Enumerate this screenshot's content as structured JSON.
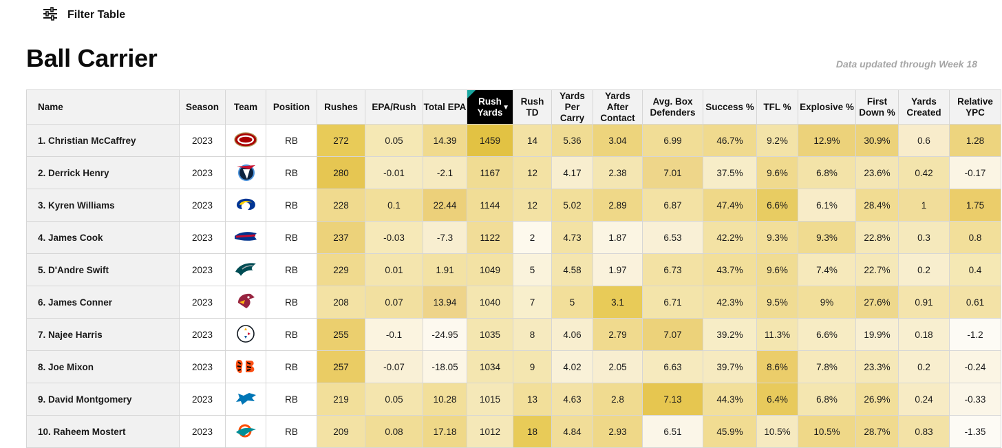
{
  "filter": {
    "label": "Filter Table",
    "icon": "sliders-icon"
  },
  "title": "Ball Carrier",
  "updated": "Data updated through Week 18",
  "columns": [
    {
      "key": "name",
      "label": "Name",
      "shade": false
    },
    {
      "key": "season",
      "label": "Season",
      "shade": false
    },
    {
      "key": "team",
      "label": "Team",
      "shade": false
    },
    {
      "key": "position",
      "label": "Position",
      "shade": false
    },
    {
      "key": "rushes",
      "label": "Rushes",
      "shade": true
    },
    {
      "key": "epa_rush",
      "label": "EPA/Rush",
      "shade": true
    },
    {
      "key": "total_epa",
      "label": "Total EPA",
      "shade": true
    },
    {
      "key": "rush_yards",
      "label": "Rush Yards",
      "shade": true,
      "sorted": true
    },
    {
      "key": "rush_td",
      "label": "Rush TD",
      "shade": true
    },
    {
      "key": "ypc",
      "label": "Yards Per Carry",
      "shade": true
    },
    {
      "key": "yac",
      "label": "Yards After Contact",
      "shade": true
    },
    {
      "key": "box",
      "label": "Avg. Box Defenders",
      "shade": true
    },
    {
      "key": "success",
      "label": "Success %",
      "shade": true
    },
    {
      "key": "tfl",
      "label": "TFL %",
      "shade": true
    },
    {
      "key": "explosive",
      "label": "Explosive %",
      "shade": true
    },
    {
      "key": "first_down",
      "label": "First Down %",
      "shade": true
    },
    {
      "key": "yards_created",
      "label": "Yards Created",
      "shade": true
    },
    {
      "key": "rel_ypc",
      "label": "Relative YPC",
      "shade": true
    }
  ],
  "rows": [
    {
      "name": "1. Christian McCaffrey",
      "season": "2023",
      "team": "SF",
      "position": "RB",
      "rushes": "272",
      "epa_rush": "0.05",
      "total_epa": "14.39",
      "rush_yards": "1459",
      "rush_td": "14",
      "ypc": "5.36",
      "yac": "3.04",
      "box": "6.99",
      "success": "46.7%",
      "tfl": "9.2%",
      "explosive": "12.9%",
      "first_down": "30.9%",
      "yards_created": "0.6",
      "rel_ypc": "1.28"
    },
    {
      "name": "2. Derrick Henry",
      "season": "2023",
      "team": "TEN",
      "position": "RB",
      "rushes": "280",
      "epa_rush": "-0.01",
      "total_epa": "-2.1",
      "rush_yards": "1167",
      "rush_td": "12",
      "ypc": "4.17",
      "yac": "2.38",
      "box": "7.01",
      "success": "37.5%",
      "tfl": "9.6%",
      "explosive": "6.8%",
      "first_down": "23.6%",
      "yards_created": "0.42",
      "rel_ypc": "-0.17"
    },
    {
      "name": "3. Kyren Williams",
      "season": "2023",
      "team": "LAR",
      "position": "RB",
      "rushes": "228",
      "epa_rush": "0.1",
      "total_epa": "22.44",
      "rush_yards": "1144",
      "rush_td": "12",
      "ypc": "5.02",
      "yac": "2.89",
      "box": "6.87",
      "success": "47.4%",
      "tfl": "6.6%",
      "explosive": "6.1%",
      "first_down": "28.4%",
      "yards_created": "1",
      "rel_ypc": "1.75"
    },
    {
      "name": "4. James Cook",
      "season": "2023",
      "team": "BUF",
      "position": "RB",
      "rushes": "237",
      "epa_rush": "-0.03",
      "total_epa": "-7.3",
      "rush_yards": "1122",
      "rush_td": "2",
      "ypc": "4.73",
      "yac": "1.87",
      "box": "6.53",
      "success": "42.2%",
      "tfl": "9.3%",
      "explosive": "9.3%",
      "first_down": "22.8%",
      "yards_created": "0.3",
      "rel_ypc": "0.8"
    },
    {
      "name": "5. D'Andre Swift",
      "season": "2023",
      "team": "PHI",
      "position": "RB",
      "rushes": "229",
      "epa_rush": "0.01",
      "total_epa": "1.91",
      "rush_yards": "1049",
      "rush_td": "5",
      "ypc": "4.58",
      "yac": "1.97",
      "box": "6.73",
      "success": "43.7%",
      "tfl": "9.6%",
      "explosive": "7.4%",
      "first_down": "22.7%",
      "yards_created": "0.2",
      "rel_ypc": "0.4"
    },
    {
      "name": "6. James Conner",
      "season": "2023",
      "team": "ARI",
      "position": "RB",
      "rushes": "208",
      "epa_rush": "0.07",
      "total_epa": "13.94",
      "rush_yards": "1040",
      "rush_td": "7",
      "ypc": "5",
      "yac": "3.1",
      "box": "6.71",
      "success": "42.3%",
      "tfl": "9.5%",
      "explosive": "9%",
      "first_down": "27.6%",
      "yards_created": "0.91",
      "rel_ypc": "0.61"
    },
    {
      "name": "7. Najee Harris",
      "season": "2023",
      "team": "PIT",
      "position": "RB",
      "rushes": "255",
      "epa_rush": "-0.1",
      "total_epa": "-24.95",
      "rush_yards": "1035",
      "rush_td": "8",
      "ypc": "4.06",
      "yac": "2.79",
      "box": "7.07",
      "success": "39.2%",
      "tfl": "11.3%",
      "explosive": "6.6%",
      "first_down": "19.9%",
      "yards_created": "0.18",
      "rel_ypc": "-1.2"
    },
    {
      "name": "8. Joe Mixon",
      "season": "2023",
      "team": "CIN",
      "position": "RB",
      "rushes": "257",
      "epa_rush": "-0.07",
      "total_epa": "-18.05",
      "rush_yards": "1034",
      "rush_td": "9",
      "ypc": "4.02",
      "yac": "2.05",
      "box": "6.63",
      "success": "39.7%",
      "tfl": "8.6%",
      "explosive": "7.8%",
      "first_down": "23.3%",
      "yards_created": "0.2",
      "rel_ypc": "-0.24"
    },
    {
      "name": "9. David Montgomery",
      "season": "2023",
      "team": "DET",
      "position": "RB",
      "rushes": "219",
      "epa_rush": "0.05",
      "total_epa": "10.28",
      "rush_yards": "1015",
      "rush_td": "13",
      "ypc": "4.63",
      "yac": "2.8",
      "box": "7.13",
      "success": "44.3%",
      "tfl": "6.4%",
      "explosive": "6.8%",
      "first_down": "26.9%",
      "yards_created": "0.24",
      "rel_ypc": "-0.33"
    },
    {
      "name": "10. Raheem Mostert",
      "season": "2023",
      "team": "MIA",
      "position": "RB",
      "rushes": "209",
      "epa_rush": "0.08",
      "total_epa": "17.18",
      "rush_yards": "1012",
      "rush_td": "18",
      "ypc": "4.84",
      "yac": "2.93",
      "box": "6.51",
      "success": "45.9%",
      "tfl": "10.5%",
      "explosive": "10.5%",
      "first_down": "28.7%",
      "yards_created": "0.83",
      "rel_ypc": "-1.35"
    }
  ],
  "heat": [
    [
      "",
      "",
      "",
      "",
      "#e8cb58",
      "#f5e8b4",
      "#f0da8e",
      "#e2c243",
      "#f3e2a4",
      "#f0dc93",
      "#edd47c",
      "#f1dd96",
      "#f0da8e",
      "#f3e3a8",
      "#ecd27a",
      "#ecd27a",
      "#f8eccb",
      "#edd47e"
    ],
    [
      "",
      "",
      "",
      "",
      "#e6c652",
      "#f6ebc2",
      "#f6eac0",
      "#f0dc93",
      "#f3e2a4",
      "#f8eecf",
      "#f4e6b2",
      "#eed68a",
      "#f7edc8",
      "#f0da8e",
      "#f3e3a8",
      "#f4e6b4",
      "#f3e4ac",
      "#fbf5e4"
    ],
    [
      "",
      "",
      "",
      "",
      "#f0da8e",
      "#f2df9a",
      "#ecd07a",
      "#f1dd96",
      "#f3e2a4",
      "#f2df9a",
      "#efd888",
      "#f3e2a4",
      "#efd888",
      "#e8cc62",
      "#f8ecc8",
      "#f1dc92",
      "#f1dd9a",
      "#ebcd6a"
    ],
    [
      "",
      "",
      "",
      "",
      "#ecd27a",
      "#f6e9b8",
      "#f8eed0",
      "#f1dd98",
      "#fdf9ed",
      "#f3e2a4",
      "#fbf5e3",
      "#f9f0d6",
      "#f3e2a4",
      "#f2df9a",
      "#f0db90",
      "#f5e8b8",
      "#f5e9bc",
      "#f2df9a"
    ],
    [
      "",
      "",
      "",
      "",
      "#f0da8e",
      "#f4e5ae",
      "#f3e2a4",
      "#f3e2a4",
      "#faf3dc",
      "#f4e5ae",
      "#faf2dc",
      "#f3e2a4",
      "#f2df9a",
      "#f0dc93",
      "#f6e9bb",
      "#f5e8b8",
      "#f8eece",
      "#f5e8b4"
    ],
    [
      "",
      "",
      "",
      "",
      "#f3e2a4",
      "#f2e0a0",
      "#eed48a",
      "#f4e6b0",
      "#f8efcc",
      "#f2df9a",
      "#e8cb58",
      "#f3e4aa",
      "#f3e2a4",
      "#f0dc93",
      "#f2df9a",
      "#eed88c",
      "#f4e4ac",
      "#f3e2a6"
    ],
    [
      "",
      "",
      "",
      "",
      "#ebcf6e",
      "#fbf4e0",
      "#fdf9ef",
      "#f4e6b0",
      "#f6eabf",
      "#f8eecf",
      "#f0da8e",
      "#ecd27a",
      "#f7edc6",
      "#f4e6b0",
      "#f7ecc4",
      "#f8efd2",
      "#f8efd0",
      "#fdfbf5"
    ],
    [
      "",
      "",
      "",
      "",
      "#eacc64",
      "#f9f0d6",
      "#fcf6e6",
      "#f4e6b0",
      "#f4e6b0",
      "#f9f1d8",
      "#f8eed0",
      "#f6eabe",
      "#f6eac0",
      "#ebcd6a",
      "#f6e9bb",
      "#f5e8b8",
      "#f8eece",
      "#fbf5e4"
    ],
    [
      "",
      "",
      "",
      "",
      "#f2df9a",
      "#f4e5ae",
      "#f2df9a",
      "#f5e8b8",
      "#f2df9a",
      "#f3e2a6",
      "#f0db90",
      "#e6c650",
      "#f2df9a",
      "#e8ca5c",
      "#f4e6b0",
      "#f2df9a",
      "#f7ebc4",
      "#fbf6e8"
    ],
    [
      "",
      "",
      "",
      "",
      "#f3e2a4",
      "#f1dd96",
      "#efd888",
      "#f5e8b8",
      "#e8cb58",
      "#f1dd98",
      "#efd888",
      "#fbf6e8",
      "#f1dc92",
      "#f6eac0",
      "#efd888",
      "#f0da8e",
      "#f3e2a6",
      "#fdfbf5"
    ]
  ]
}
